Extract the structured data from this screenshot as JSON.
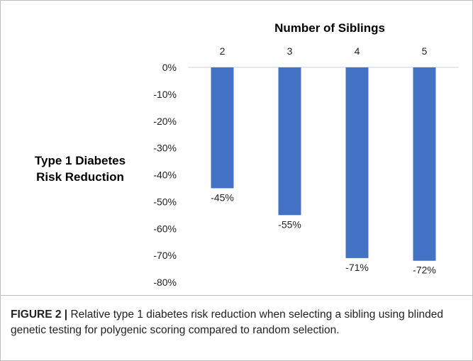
{
  "chart_data": {
    "type": "bar",
    "title": "",
    "xlabel": "Number of Siblings",
    "ylabel": "Type 1 Diabetes Risk Reduction",
    "ylabel_lines": [
      "Type 1 Diabetes",
      "Risk Reduction"
    ],
    "categories": [
      "2",
      "3",
      "4",
      "5"
    ],
    "values": [
      -45,
      -55,
      -71,
      -72
    ],
    "data_labels": [
      "-45%",
      "-55%",
      "-71%",
      "-72%"
    ],
    "y_ticks": [
      0,
      -10,
      -20,
      -30,
      -40,
      -50,
      -60,
      -70,
      -80
    ],
    "y_tick_labels": [
      "0%",
      "-10%",
      "-20%",
      "-30%",
      "-40%",
      "-50%",
      "-60%",
      "-70%",
      "-80%"
    ],
    "ylim": [
      -80,
      0
    ],
    "x_axis_position": "top",
    "grid": false,
    "legend": "none",
    "bar_color": "#4472c4"
  },
  "caption": {
    "label": "FIGURE 2 |",
    "text": " Relative type 1 diabetes risk reduction when selecting a sibling using blinded genetic testing for polygenic scoring compared to random selection."
  }
}
